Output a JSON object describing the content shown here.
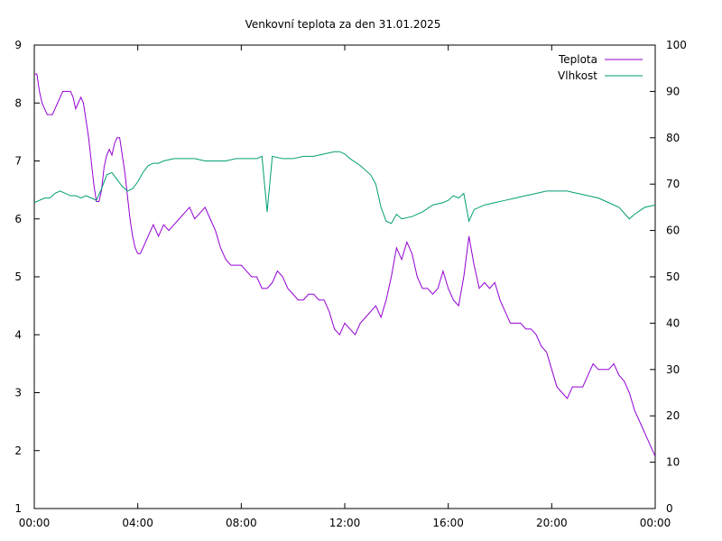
{
  "chart_data": {
    "type": "line",
    "title": "Venkovní teplota za den 31.01.2025",
    "xlabel": "",
    "ylabel": "",
    "y2label": "",
    "grid": false,
    "legend_position": "top-right",
    "xlim": [
      0,
      24
    ],
    "ylim": [
      1,
      9
    ],
    "y2lim": [
      0,
      100
    ],
    "x_tick_labels": [
      "00:00",
      "04:00",
      "08:00",
      "12:00",
      "16:00",
      "20:00",
      "00:00"
    ],
    "y_tick_labels": [
      "1",
      "2",
      "3",
      "4",
      "5",
      "6",
      "7",
      "8",
      "9"
    ],
    "y2_tick_labels": [
      "0",
      "10",
      "20",
      "30",
      "40",
      "50",
      "60",
      "70",
      "80",
      "90",
      "100"
    ],
    "series": [
      {
        "name": "Teplota",
        "axis": "left",
        "color": "#9400d3",
        "points": [
          [
            0.0,
            8.5
          ],
          [
            0.1,
            8.5
          ],
          [
            0.2,
            8.2
          ],
          [
            0.3,
            8.0
          ],
          [
            0.4,
            7.9
          ],
          [
            0.5,
            7.8
          ],
          [
            0.6,
            7.8
          ],
          [
            0.7,
            7.8
          ],
          [
            0.8,
            7.9
          ],
          [
            0.9,
            8.0
          ],
          [
            1.0,
            8.1
          ],
          [
            1.1,
            8.2
          ],
          [
            1.2,
            8.2
          ],
          [
            1.3,
            8.2
          ],
          [
            1.4,
            8.2
          ],
          [
            1.5,
            8.1
          ],
          [
            1.6,
            7.9
          ],
          [
            1.7,
            8.0
          ],
          [
            1.8,
            8.1
          ],
          [
            1.9,
            8.0
          ],
          [
            2.0,
            7.7
          ],
          [
            2.1,
            7.4
          ],
          [
            2.2,
            7.0
          ],
          [
            2.3,
            6.6
          ],
          [
            2.4,
            6.3
          ],
          [
            2.5,
            6.3
          ],
          [
            2.6,
            6.5
          ],
          [
            2.7,
            6.9
          ],
          [
            2.8,
            7.1
          ],
          [
            2.9,
            7.2
          ],
          [
            3.0,
            7.1
          ],
          [
            3.1,
            7.3
          ],
          [
            3.2,
            7.4
          ],
          [
            3.3,
            7.4
          ],
          [
            3.4,
            7.1
          ],
          [
            3.5,
            6.8
          ],
          [
            3.6,
            6.4
          ],
          [
            3.7,
            6.0
          ],
          [
            3.8,
            5.7
          ],
          [
            3.9,
            5.5
          ],
          [
            4.0,
            5.4
          ],
          [
            4.1,
            5.4
          ],
          [
            4.2,
            5.5
          ],
          [
            4.3,
            5.6
          ],
          [
            4.4,
            5.7
          ],
          [
            4.5,
            5.8
          ],
          [
            4.6,
            5.9
          ],
          [
            4.7,
            5.8
          ],
          [
            4.8,
            5.7
          ],
          [
            4.9,
            5.8
          ],
          [
            5.0,
            5.9
          ],
          [
            5.2,
            5.8
          ],
          [
            5.4,
            5.9
          ],
          [
            5.6,
            6.0
          ],
          [
            5.8,
            6.1
          ],
          [
            6.0,
            6.2
          ],
          [
            6.2,
            6.0
          ],
          [
            6.4,
            6.1
          ],
          [
            6.6,
            6.2
          ],
          [
            6.8,
            6.0
          ],
          [
            7.0,
            5.8
          ],
          [
            7.2,
            5.5
          ],
          [
            7.4,
            5.3
          ],
          [
            7.6,
            5.2
          ],
          [
            7.8,
            5.2
          ],
          [
            8.0,
            5.2
          ],
          [
            8.2,
            5.1
          ],
          [
            8.4,
            5.0
          ],
          [
            8.6,
            5.0
          ],
          [
            8.8,
            4.8
          ],
          [
            9.0,
            4.8
          ],
          [
            9.2,
            4.9
          ],
          [
            9.4,
            5.1
          ],
          [
            9.6,
            5.0
          ],
          [
            9.8,
            4.8
          ],
          [
            10.0,
            4.7
          ],
          [
            10.2,
            4.6
          ],
          [
            10.4,
            4.6
          ],
          [
            10.6,
            4.7
          ],
          [
            10.8,
            4.7
          ],
          [
            11.0,
            4.6
          ],
          [
            11.2,
            4.6
          ],
          [
            11.4,
            4.4
          ],
          [
            11.6,
            4.1
          ],
          [
            11.8,
            4.0
          ],
          [
            12.0,
            4.2
          ],
          [
            12.2,
            4.1
          ],
          [
            12.4,
            4.0
          ],
          [
            12.6,
            4.2
          ],
          [
            12.8,
            4.3
          ],
          [
            13.0,
            4.4
          ],
          [
            13.2,
            4.5
          ],
          [
            13.4,
            4.3
          ],
          [
            13.6,
            4.6
          ],
          [
            13.8,
            5.0
          ],
          [
            14.0,
            5.5
          ],
          [
            14.2,
            5.3
          ],
          [
            14.4,
            5.6
          ],
          [
            14.6,
            5.4
          ],
          [
            14.8,
            5.0
          ],
          [
            15.0,
            4.8
          ],
          [
            15.2,
            4.8
          ],
          [
            15.4,
            4.7
          ],
          [
            15.6,
            4.8
          ],
          [
            15.8,
            5.1
          ],
          [
            16.0,
            4.8
          ],
          [
            16.2,
            4.6
          ],
          [
            16.4,
            4.5
          ],
          [
            16.6,
            5.0
          ],
          [
            16.8,
            5.7
          ],
          [
            17.0,
            5.2
          ],
          [
            17.2,
            4.8
          ],
          [
            17.4,
            4.9
          ],
          [
            17.6,
            4.8
          ],
          [
            17.8,
            4.9
          ],
          [
            18.0,
            4.6
          ],
          [
            18.2,
            4.4
          ],
          [
            18.4,
            4.2
          ],
          [
            18.6,
            4.2
          ],
          [
            18.8,
            4.2
          ],
          [
            19.0,
            4.1
          ],
          [
            19.2,
            4.1
          ],
          [
            19.4,
            4.0
          ],
          [
            19.6,
            3.8
          ],
          [
            19.8,
            3.7
          ],
          [
            20.0,
            3.4
          ],
          [
            20.2,
            3.1
          ],
          [
            20.4,
            3.0
          ],
          [
            20.6,
            2.9
          ],
          [
            20.8,
            3.1
          ],
          [
            21.0,
            3.1
          ],
          [
            21.2,
            3.1
          ],
          [
            21.4,
            3.3
          ],
          [
            21.6,
            3.5
          ],
          [
            21.8,
            3.4
          ],
          [
            22.0,
            3.4
          ],
          [
            22.2,
            3.4
          ],
          [
            22.4,
            3.5
          ],
          [
            22.6,
            3.3
          ],
          [
            22.8,
            3.2
          ],
          [
            23.0,
            3.0
          ],
          [
            23.2,
            2.7
          ],
          [
            23.4,
            2.5
          ],
          [
            23.6,
            2.3
          ],
          [
            23.8,
            2.1
          ],
          [
            24.0,
            1.9
          ]
        ]
      },
      {
        "name": "Vlhkost",
        "axis": "right",
        "color": "#009e73",
        "points": [
          [
            0.0,
            66.0
          ],
          [
            0.2,
            66.5
          ],
          [
            0.4,
            67.0
          ],
          [
            0.6,
            67.0
          ],
          [
            0.8,
            68.0
          ],
          [
            1.0,
            68.5
          ],
          [
            1.2,
            68.0
          ],
          [
            1.4,
            67.5
          ],
          [
            1.6,
            67.5
          ],
          [
            1.8,
            67.0
          ],
          [
            2.0,
            67.5
          ],
          [
            2.2,
            67.0
          ],
          [
            2.4,
            66.5
          ],
          [
            2.6,
            69.0
          ],
          [
            2.8,
            72.0
          ],
          [
            3.0,
            72.5
          ],
          [
            3.2,
            71.0
          ],
          [
            3.4,
            69.5
          ],
          [
            3.6,
            68.5
          ],
          [
            3.8,
            69.0
          ],
          [
            4.0,
            70.5
          ],
          [
            4.2,
            72.5
          ],
          [
            4.4,
            74.0
          ],
          [
            4.6,
            74.5
          ],
          [
            4.8,
            74.5
          ],
          [
            5.0,
            75.0
          ],
          [
            5.4,
            75.5
          ],
          [
            5.8,
            75.5
          ],
          [
            6.2,
            75.5
          ],
          [
            6.6,
            75.0
          ],
          [
            7.0,
            75.0
          ],
          [
            7.4,
            75.0
          ],
          [
            7.8,
            75.5
          ],
          [
            8.2,
            75.5
          ],
          [
            8.6,
            75.5
          ],
          [
            8.8,
            76.0
          ],
          [
            9.0,
            64.0
          ],
          [
            9.2,
            76.0
          ],
          [
            9.6,
            75.5
          ],
          [
            10.0,
            75.5
          ],
          [
            10.4,
            76.0
          ],
          [
            10.8,
            76.0
          ],
          [
            11.2,
            76.5
          ],
          [
            11.6,
            77.0
          ],
          [
            11.8,
            77.0
          ],
          [
            12.0,
            76.5
          ],
          [
            12.2,
            75.5
          ],
          [
            12.6,
            74.0
          ],
          [
            13.0,
            72.0
          ],
          [
            13.2,
            70.0
          ],
          [
            13.4,
            65.0
          ],
          [
            13.6,
            62.0
          ],
          [
            13.8,
            61.5
          ],
          [
            14.0,
            63.5
          ],
          [
            14.2,
            62.5
          ],
          [
            14.6,
            63.0
          ],
          [
            15.0,
            64.0
          ],
          [
            15.4,
            65.5
          ],
          [
            15.8,
            66.0
          ],
          [
            16.0,
            66.5
          ],
          [
            16.2,
            67.5
          ],
          [
            16.4,
            67.0
          ],
          [
            16.6,
            68.0
          ],
          [
            16.8,
            62.0
          ],
          [
            17.0,
            64.5
          ],
          [
            17.4,
            65.5
          ],
          [
            17.8,
            66.0
          ],
          [
            18.2,
            66.5
          ],
          [
            18.6,
            67.0
          ],
          [
            19.0,
            67.5
          ],
          [
            19.4,
            68.0
          ],
          [
            19.8,
            68.5
          ],
          [
            20.2,
            68.5
          ],
          [
            20.6,
            68.5
          ],
          [
            21.0,
            68.0
          ],
          [
            21.4,
            67.5
          ],
          [
            21.8,
            67.0
          ],
          [
            22.2,
            66.0
          ],
          [
            22.6,
            65.0
          ],
          [
            23.0,
            62.5
          ],
          [
            23.2,
            63.5
          ],
          [
            23.6,
            65.0
          ],
          [
            24.0,
            65.5
          ]
        ]
      }
    ]
  }
}
